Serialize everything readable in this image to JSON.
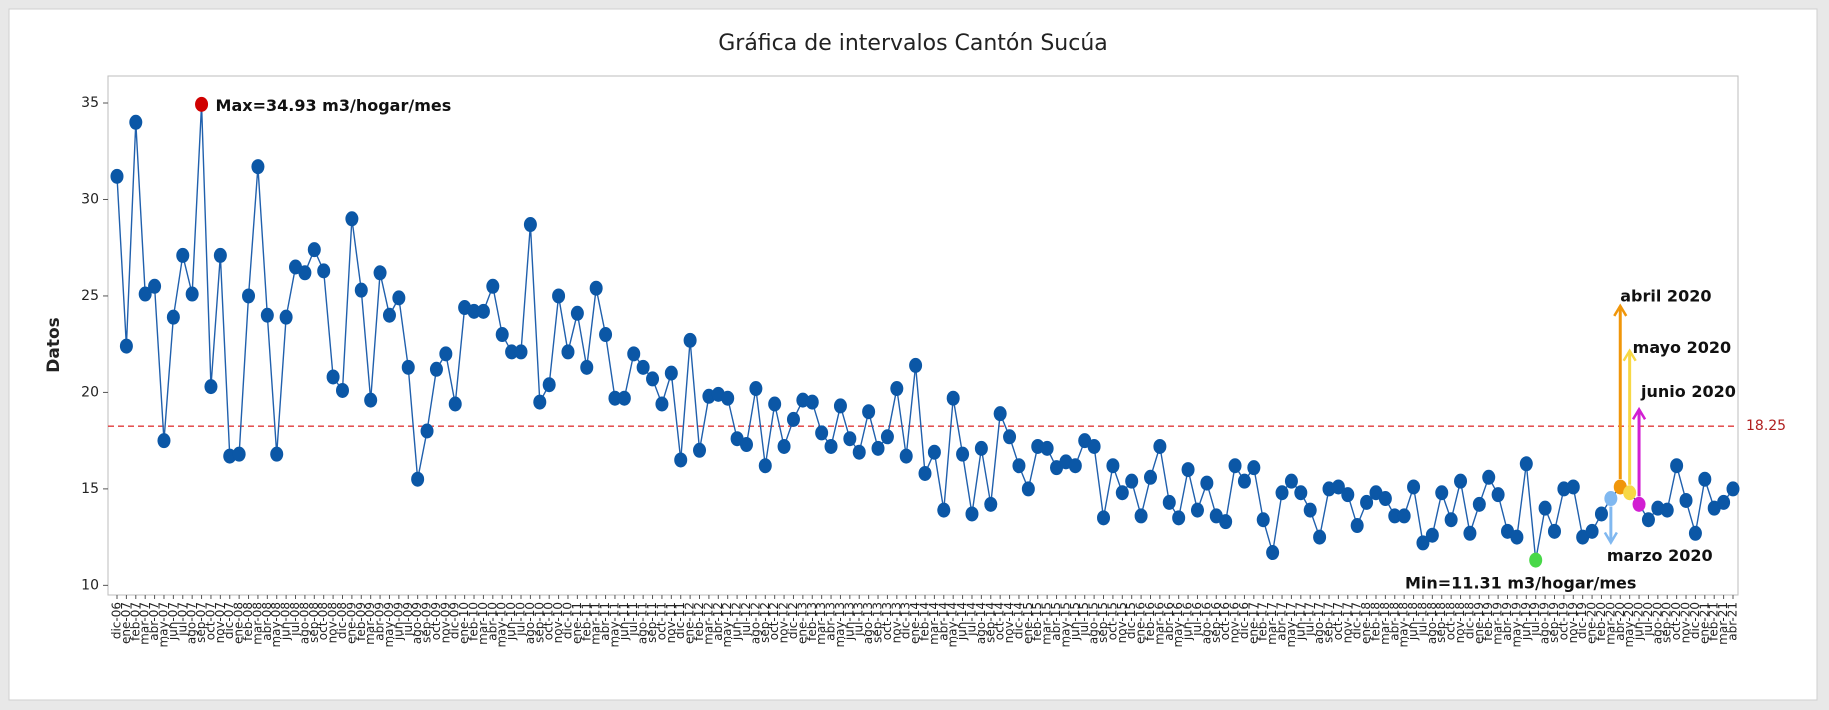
{
  "chart_data": {
    "type": "line",
    "title": "Gráfica de intervalos Cantón Sucúa",
    "y_label": "Datos",
    "categories": [
      "dic-06",
      "ene-07",
      "feb-07",
      "mar-07",
      "abr-07",
      "may-07",
      "jun-07",
      "jul-07",
      "ago-07",
      "sep-07",
      "oct-07",
      "nov-07",
      "dic-07",
      "ene-08",
      "feb-08",
      "mar-08",
      "abr-08",
      "may-08",
      "jun-08",
      "jul-08",
      "ago-08",
      "sep-08",
      "oct-08",
      "nov-08",
      "dic-08",
      "ene-09",
      "feb-09",
      "mar-09",
      "abr-09",
      "may-09",
      "jun-09",
      "jul-09",
      "ago-09",
      "sep-09",
      "oct-09",
      "nov-09",
      "dic-09",
      "ene-10",
      "feb-10",
      "mar-10",
      "abr-10",
      "may-10",
      "jun-10",
      "jul-10",
      "ago-10",
      "sep-10",
      "oct-10",
      "nov-10",
      "dic-10",
      "ene-11",
      "feb-11",
      "mar-11",
      "abr-11",
      "may-11",
      "jun-11",
      "jul-11",
      "ago-11",
      "sep-11",
      "oct-11",
      "nov-11",
      "dic-11",
      "ene-12",
      "feb-12",
      "mar-12",
      "abr-12",
      "may-12",
      "jun-12",
      "jul-12",
      "ago-12",
      "sep-12",
      "oct-12",
      "nov-12",
      "dic-12",
      "ene-13",
      "feb-13",
      "mar-13",
      "abr-13",
      "may-13",
      "jun-13",
      "jul-13",
      "ago-13",
      "sep-13",
      "oct-13",
      "nov-13",
      "dic-13",
      "ene-14",
      "feb-14",
      "mar-14",
      "abr-14",
      "may-14",
      "jun-14",
      "jul-14",
      "ago-14",
      "sep-14",
      "oct-14",
      "nov-14",
      "dic-14",
      "ene-15",
      "feb-15",
      "mar-15",
      "abr-15",
      "may-15",
      "jun-15",
      "jul-15",
      "ago-15",
      "sep-15",
      "oct-15",
      "nov-15",
      "dic-15",
      "ene-16",
      "feb-16",
      "mar-16",
      "abr-16",
      "may-16",
      "jun-16",
      "jul-16",
      "ago-16",
      "sep-16",
      "oct-16",
      "nov-16",
      "dic-16",
      "ene-17",
      "feb-17",
      "mar-17",
      "abr-17",
      "may-17",
      "jun-17",
      "jul-17",
      "ago-17",
      "sep-17",
      "oct-17",
      "nov-17",
      "dic-17",
      "ene-18",
      "feb-18",
      "mar-18",
      "abr-18",
      "may-18",
      "jun-18",
      "jul-18",
      "ago-18",
      "sep-18",
      "oct-18",
      "nov-18",
      "dic-18",
      "ene-19",
      "feb-19",
      "mar-19",
      "abr-19",
      "may-19",
      "jun-19",
      "jul-19",
      "ago-19",
      "sep-19",
      "oct-19",
      "nov-19",
      "dic-19",
      "ene-20",
      "feb-20",
      "mar-20",
      "abr-20",
      "may-20",
      "jun-20",
      "jul-20",
      "ago-20",
      "sep-20",
      "oct-20",
      "nov-20",
      "dic-20",
      "ene-21",
      "feb-21",
      "mar-21",
      "abr-21"
    ],
    "values": [
      31.2,
      22.4,
      34.0,
      25.1,
      25.5,
      17.5,
      23.9,
      27.1,
      25.1,
      34.93,
      20.3,
      27.1,
      16.7,
      16.8,
      25.0,
      31.7,
      24.0,
      16.8,
      23.9,
      26.5,
      26.2,
      27.4,
      26.3,
      20.8,
      20.1,
      29.0,
      25.3,
      19.6,
      26.2,
      24.0,
      24.9,
      21.3,
      15.5,
      18.0,
      21.2,
      22.0,
      19.4,
      24.4,
      24.2,
      24.2,
      25.5,
      23.0,
      22.1,
      22.1,
      28.7,
      19.5,
      20.4,
      25.0,
      22.1,
      24.1,
      21.3,
      25.4,
      23.0,
      19.7,
      19.7,
      22.0,
      21.3,
      20.7,
      19.4,
      21.0,
      16.5,
      22.7,
      17.0,
      19.8,
      19.9,
      19.7,
      17.6,
      17.3,
      20.2,
      16.2,
      19.4,
      17.2,
      18.6,
      19.6,
      19.5,
      17.9,
      17.2,
      19.3,
      17.6,
      16.9,
      19.0,
      17.1,
      17.7,
      20.2,
      16.7,
      21.4,
      15.8,
      16.9,
      13.9,
      19.7,
      16.8,
      13.7,
      17.1,
      14.2,
      18.9,
      17.7,
      16.2,
      15.0,
      17.2,
      17.1,
      16.1,
      16.4,
      16.2,
      17.5,
      17.2,
      13.5,
      16.2,
      14.8,
      15.4,
      13.6,
      15.6,
      17.2,
      14.3,
      13.5,
      16.0,
      13.9,
      15.3,
      13.6,
      13.3,
      16.2,
      15.4,
      16.1,
      13.4,
      11.7,
      14.8,
      15.4,
      14.8,
      13.9,
      12.5,
      15.0,
      15.1,
      14.7,
      13.1,
      14.3,
      14.8,
      14.5,
      13.6,
      13.6,
      15.1,
      12.2,
      12.6,
      14.8,
      13.4,
      15.4,
      12.7,
      14.2,
      15.6,
      14.7,
      12.8,
      12.5,
      16.3,
      11.31,
      14.0,
      12.8,
      15.0,
      15.1,
      12.5,
      12.8,
      13.7,
      14.5,
      15.1,
      14.8,
      14.2,
      13.4,
      14.0,
      13.9,
      16.2,
      14.4,
      12.7,
      15.5,
      14.0,
      14.3,
      15.0
    ],
    "color": "#2060ad",
    "marker_color": "#0b57a6",
    "ylim": [
      9.5,
      36.4
    ],
    "yticks": [
      10,
      15,
      20,
      25,
      30,
      35
    ],
    "reference_line": {
      "value": 18.25,
      "color": "#e03a3a"
    },
    "annotations": [
      {
        "text": "Max=34.93 m3/hogar/mes",
        "category": "sep-07",
        "color": "#d00000"
      },
      {
        "text": "Min=11.31 m3/hogar/mes",
        "category": "jul-19",
        "color": "#48d848"
      },
      {
        "text": "marzo 2020",
        "category": "mar-20",
        "color": "#80b8f0"
      },
      {
        "text": "abril 2020",
        "category": "abr-20",
        "color": "#f0960a"
      },
      {
        "text": "mayo 2020",
        "category": "may-20",
        "color": "#f7d845"
      },
      {
        "text": "junio 2020",
        "category": "jun-20",
        "color": "#d21fd2"
      }
    ]
  }
}
